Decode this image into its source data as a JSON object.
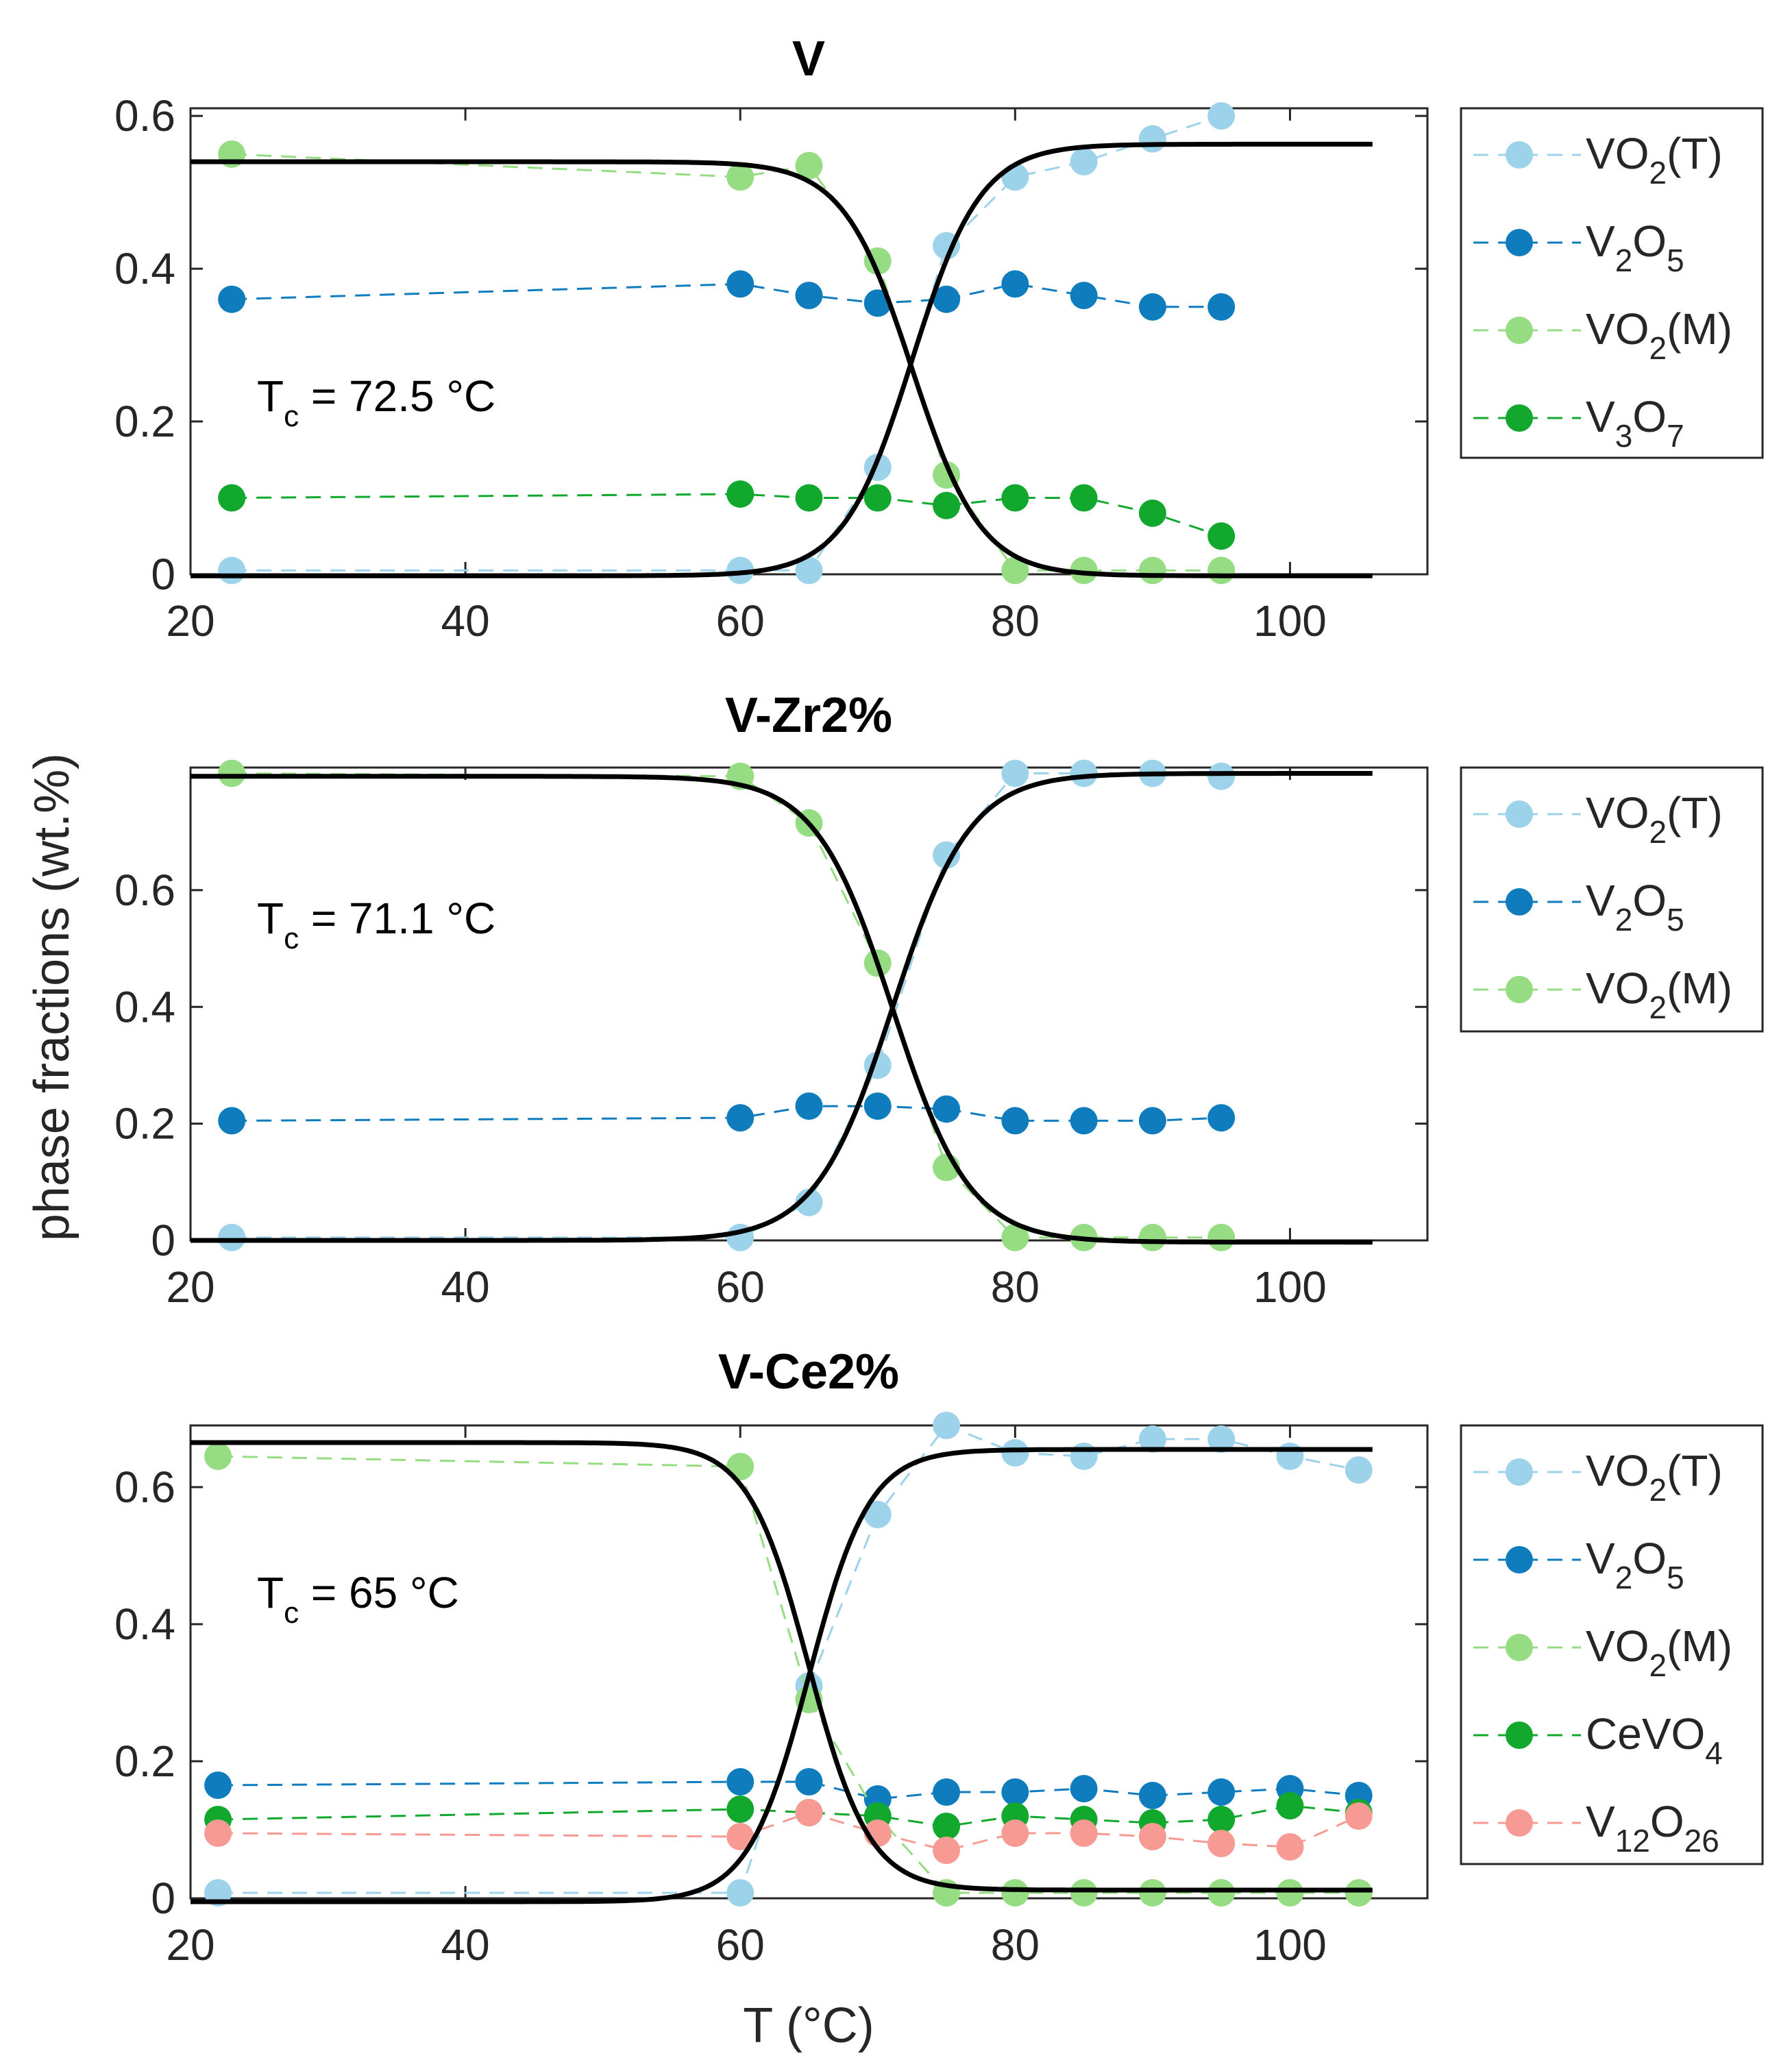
{
  "chart_data": {
    "type": "line",
    "layout": "3 stacked subplots",
    "xlabel": "T (°C)",
    "ylabel": "phase fractions (wt.%)",
    "colors": {
      "VO2(T)": "#9dd3ea",
      "V2O5": "#0f7dbd",
      "VO2(M)": "#96dc82",
      "V3O7": "#12a82d",
      "CeVO4": "#12a82d",
      "V12O26": "#f89a94",
      "fit": "#000000"
    },
    "panels": [
      {
        "title": "V",
        "tc_label": "T",
        "tc_sub": "c",
        "tc_value": " = 72.5 °C",
        "xlim": [
          20,
          110
        ],
        "ylim": [
          0,
          0.61
        ],
        "xticks": [
          20,
          40,
          60,
          80,
          100
        ],
        "xtick_labels": [
          "20",
          "40",
          "60",
          "80",
          "100"
        ],
        "yticks": [
          0,
          0.2,
          0.4,
          0.6
        ],
        "ytick_labels": [
          "0",
          "0.2",
          "0.4",
          "0.6"
        ],
        "series": [
          {
            "name": "VO2(T)",
            "color_key": "VO2(T)",
            "label_parts": [
              [
                "VO",
                ""
              ],
              [
                "2",
                "sub"
              ],
              [
                "(T)",
                ""
              ]
            ],
            "x": [
              23,
              60,
              65,
              70,
              75,
              80,
              85,
              90,
              95
            ],
            "y": [
              0.005,
              0.005,
              0.005,
              0.14,
              0.43,
              0.52,
              0.54,
              0.57,
              0.6
            ]
          },
          {
            "name": "V2O5",
            "color_key": "V2O5",
            "label_parts": [
              [
                "V",
                ""
              ],
              [
                "2",
                "sub"
              ],
              [
                "O",
                ""
              ],
              [
                "5",
                "sub"
              ]
            ],
            "x": [
              23,
              60,
              65,
              70,
              75,
              80,
              85,
              90,
              95
            ],
            "y": [
              0.36,
              0.38,
              0.365,
              0.355,
              0.36,
              0.38,
              0.365,
              0.35,
              0.35
            ]
          },
          {
            "name": "VO2(M)",
            "color_key": "VO2(M)",
            "label_parts": [
              [
                "VO",
                ""
              ],
              [
                "2",
                "sub"
              ],
              [
                "(M)",
                ""
              ]
            ],
            "x": [
              23,
              60,
              65,
              70,
              75,
              80,
              85,
              90,
              95
            ],
            "y": [
              0.55,
              0.52,
              0.535,
              0.41,
              0.13,
              0.005,
              0.005,
              0.005,
              0.005
            ]
          },
          {
            "name": "V3O7",
            "color_key": "V3O7",
            "label_parts": [
              [
                "V",
                ""
              ],
              [
                "3",
                "sub"
              ],
              [
                "O",
                ""
              ],
              [
                "7",
                "sub"
              ]
            ],
            "x": [
              23,
              60,
              65,
              70,
              75,
              80,
              85,
              90,
              95
            ],
            "y": [
              0.1,
              0.105,
              0.1,
              0.1,
              0.09,
              0.1,
              0.1,
              0.08,
              0.05
            ]
          }
        ],
        "fits": [
          {
            "kind": "rise",
            "tc": 72.5,
            "width": 2.5,
            "low": -0.002,
            "high": 0.563,
            "x_range": [
              20,
              106
            ]
          },
          {
            "kind": "fall",
            "tc": 72.5,
            "width": 2.5,
            "low": -0.002,
            "high": 0.54,
            "x_range": [
              20,
              106
            ]
          }
        ]
      },
      {
        "title": "V-Zr2%",
        "tc_label": "T",
        "tc_sub": "c",
        "tc_value": " = 71.1 °C",
        "xlim": [
          20,
          110
        ],
        "ylim": [
          0,
          0.81
        ],
        "xticks": [
          20,
          40,
          60,
          80,
          100
        ],
        "xtick_labels": [
          "20",
          "40",
          "60",
          "80",
          "100"
        ],
        "yticks": [
          0,
          0.2,
          0.4,
          0.6
        ],
        "ytick_labels": [
          "0",
          "0.2",
          "0.4",
          "0.6"
        ],
        "series": [
          {
            "name": "VO2(T)",
            "color_key": "VO2(T)",
            "label_parts": [
              [
                "VO",
                ""
              ],
              [
                "2",
                "sub"
              ],
              [
                "(T)",
                ""
              ]
            ],
            "x": [
              23,
              60,
              65,
              70,
              75,
              80,
              85,
              90,
              95
            ],
            "y": [
              0.005,
              0.005,
              0.065,
              0.3,
              0.66,
              0.8,
              0.8,
              0.8,
              0.795
            ]
          },
          {
            "name": "V2O5",
            "color_key": "V2O5",
            "label_parts": [
              [
                "V",
                ""
              ],
              [
                "2",
                "sub"
              ],
              [
                "O",
                ""
              ],
              [
                "5",
                "sub"
              ]
            ],
            "x": [
              23,
              60,
              65,
              70,
              75,
              80,
              85,
              90,
              95
            ],
            "y": [
              0.205,
              0.21,
              0.23,
              0.23,
              0.225,
              0.205,
              0.205,
              0.205,
              0.21
            ]
          },
          {
            "name": "VO2(M)",
            "color_key": "VO2(M)",
            "label_parts": [
              [
                "VO",
                ""
              ],
              [
                "2",
                "sub"
              ],
              [
                "(M)",
                ""
              ]
            ],
            "x": [
              23,
              60,
              65,
              70,
              75,
              80,
              85,
              90,
              95
            ],
            "y": [
              0.8,
              0.795,
              0.715,
              0.475,
              0.125,
              0.005,
              0.005,
              0.005,
              0.005
            ]
          }
        ],
        "fits": [
          {
            "kind": "rise",
            "tc": 71.1,
            "width": 2.8,
            "low": 0.0,
            "high": 0.8,
            "x_range": [
              20,
              106
            ]
          },
          {
            "kind": "fall",
            "tc": 71.1,
            "width": 2.8,
            "low": -0.003,
            "high": 0.795,
            "x_range": [
              20,
              106
            ]
          }
        ]
      },
      {
        "title": "V-Ce2%",
        "tc_label": "T",
        "tc_sub": "c",
        "tc_value": " = 65 °C",
        "xlim": [
          20,
          110
        ],
        "ylim": [
          0,
          0.69
        ],
        "xticks": [
          20,
          40,
          60,
          80,
          100
        ],
        "xtick_labels": [
          "20",
          "40",
          "60",
          "80",
          "100"
        ],
        "yticks": [
          0,
          0.2,
          0.4,
          0.6
        ],
        "ytick_labels": [
          "0",
          "0.2",
          "0.4",
          "0.6"
        ],
        "series": [
          {
            "name": "VO2(T)",
            "color_key": "VO2(T)",
            "label_parts": [
              [
                "VO",
                ""
              ],
              [
                "2",
                "sub"
              ],
              [
                "(T)",
                ""
              ]
            ],
            "x": [
              22,
              60,
              65,
              70,
              75,
              80,
              85,
              90,
              95,
              100,
              105
            ],
            "y": [
              0.008,
              0.008,
              0.31,
              0.56,
              0.69,
              0.65,
              0.645,
              0.67,
              0.67,
              0.645,
              0.625
            ]
          },
          {
            "name": "V2O5",
            "color_key": "V2O5",
            "label_parts": [
              [
                "V",
                ""
              ],
              [
                "2",
                "sub"
              ],
              [
                "O",
                ""
              ],
              [
                "5",
                "sub"
              ]
            ],
            "x": [
              22,
              60,
              65,
              70,
              75,
              80,
              85,
              90,
              95,
              100,
              105
            ],
            "y": [
              0.165,
              0.17,
              0.17,
              0.145,
              0.155,
              0.155,
              0.16,
              0.15,
              0.155,
              0.16,
              0.15
            ]
          },
          {
            "name": "VO2(M)",
            "color_key": "VO2(M)",
            "label_parts": [
              [
                "VO",
                ""
              ],
              [
                "2",
                "sub"
              ],
              [
                "(M)",
                ""
              ]
            ],
            "x": [
              22,
              60,
              65,
              70,
              75,
              80,
              85,
              90,
              95,
              100,
              105
            ],
            "y": [
              0.645,
              0.63,
              0.29,
              0.12,
              0.008,
              0.008,
              0.008,
              0.008,
              0.008,
              0.008,
              0.008
            ]
          },
          {
            "name": "CeVO4",
            "color_key": "CeVO4",
            "label_parts": [
              [
                "CeVO",
                ""
              ],
              [
                "4",
                "sub"
              ]
            ],
            "x": [
              22,
              60,
              65,
              70,
              75,
              80,
              85,
              90,
              95,
              100,
              105
            ],
            "y": [
              0.115,
              0.13,
              0.125,
              0.12,
              0.105,
              0.12,
              0.115,
              0.11,
              0.115,
              0.135,
              0.125
            ]
          },
          {
            "name": "V12O26",
            "color_key": "V12O26",
            "label_parts": [
              [
                "V",
                ""
              ],
              [
                "12",
                "sub"
              ],
              [
                "O",
                ""
              ],
              [
                "26",
                "sub"
              ]
            ],
            "x": [
              22,
              60,
              65,
              70,
              75,
              80,
              85,
              90,
              95,
              100,
              105
            ],
            "y": [
              0.095,
              0.09,
              0.125,
              0.095,
              0.07,
              0.095,
              0.095,
              0.09,
              0.08,
              0.075,
              0.12
            ]
          }
        ],
        "fits": [
          {
            "kind": "rise",
            "tc": 65.0,
            "width": 2.2,
            "low": -0.005,
            "high": 0.655,
            "x_range": [
              20,
              106
            ]
          },
          {
            "kind": "fall",
            "tc": 65.0,
            "width": 2.2,
            "low": 0.012,
            "high": 0.665,
            "x_range": [
              20,
              106
            ]
          }
        ]
      }
    ]
  }
}
